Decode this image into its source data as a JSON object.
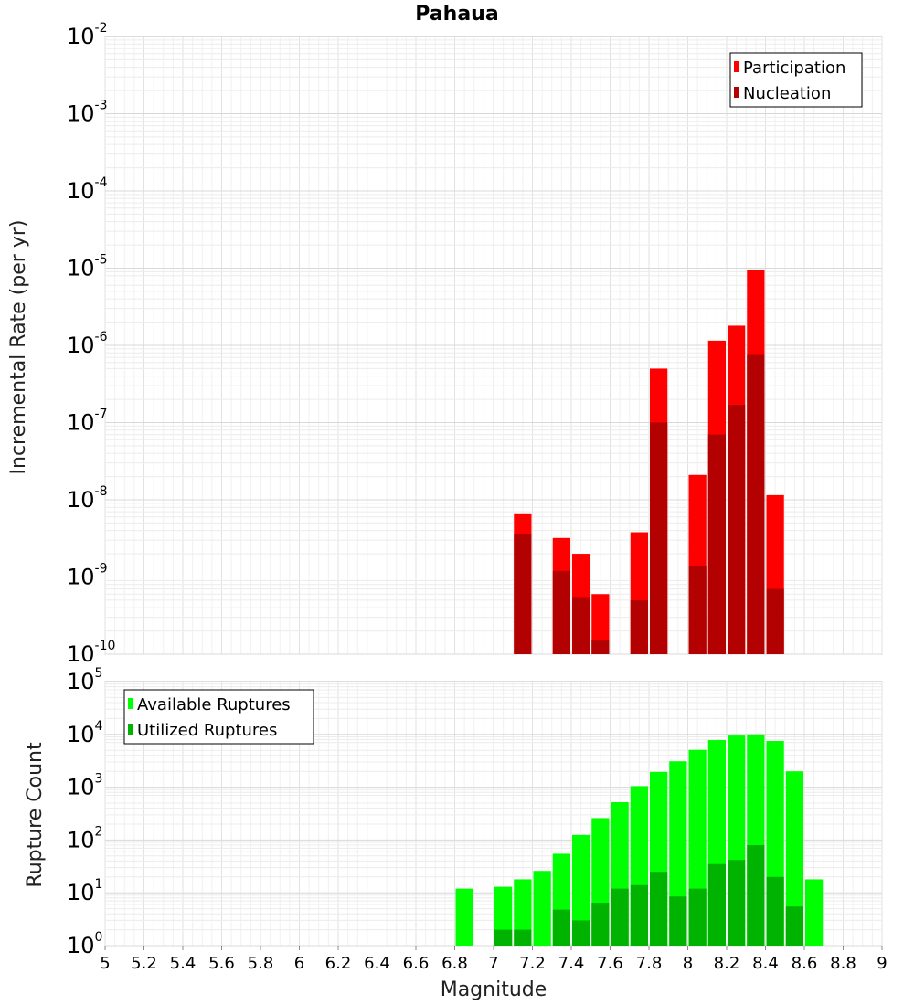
{
  "title": "Pahaua",
  "xlabel": "Magnitude",
  "x_ticks": [
    "5",
    "5.2",
    "5.4",
    "5.6",
    "5.8",
    "6",
    "6.2",
    "6.4",
    "6.6",
    "6.8",
    "7",
    "7.2",
    "7.4",
    "7.6",
    "7.8",
    "8",
    "8.2",
    "8.4",
    "8.6",
    "8.8",
    "9"
  ],
  "chart_data": [
    {
      "type": "bar",
      "id": "rate",
      "ylabel": "Incremental Rate (per yr)",
      "yscale": "log",
      "xlim": [
        5,
        9
      ],
      "ylim": [
        1e-10,
        0.01
      ],
      "y_ticks": [
        {
          "base": "10",
          "exp": "-2",
          "value": 0.01
        },
        {
          "base": "10",
          "exp": "-3",
          "value": 0.001
        },
        {
          "base": "10",
          "exp": "-4",
          "value": 0.0001
        },
        {
          "base": "10",
          "exp": "-5",
          "value": 1e-05
        },
        {
          "base": "10",
          "exp": "-6",
          "value": 1e-06
        },
        {
          "base": "10",
          "exp": "-7",
          "value": 1e-07
        },
        {
          "base": "10",
          "exp": "-8",
          "value": 1e-08
        },
        {
          "base": "10",
          "exp": "-9",
          "value": 1e-09
        },
        {
          "base": "10",
          "exp": "-10",
          "value": 1e-10
        }
      ],
      "legend_position": "top-right",
      "grid": true,
      "x": [
        7.05,
        7.15,
        7.25,
        7.35,
        7.45,
        7.55,
        7.65,
        7.75,
        7.85,
        7.95,
        8.05,
        8.15,
        8.25,
        8.35,
        8.45
      ],
      "series": [
        {
          "name": "Participation",
          "color": "#ff0000",
          "values": [
            null,
            6.5e-09,
            null,
            3.2e-09,
            2e-09,
            6e-10,
            null,
            3.8e-09,
            5e-07,
            null,
            2.1e-08,
            1.15e-06,
            1.8e-06,
            9.5e-06,
            1.15e-08
          ]
        },
        {
          "name": "Nucleation",
          "color": "#b30000",
          "values": [
            null,
            3.6e-09,
            null,
            1.2e-09,
            5.5e-10,
            1.5e-10,
            null,
            5e-10,
            1e-07,
            null,
            1.4e-09,
            7e-08,
            1.7e-07,
            7.5e-07,
            7e-10
          ]
        }
      ]
    },
    {
      "type": "bar",
      "id": "count",
      "ylabel": "Rupture Count",
      "yscale": "log",
      "xlim": [
        5,
        9
      ],
      "ylim": [
        1,
        100000
      ],
      "y_ticks": [
        {
          "base": "10",
          "exp": "5",
          "value": 100000
        },
        {
          "base": "10",
          "exp": "4",
          "value": 10000
        },
        {
          "base": "10",
          "exp": "3",
          "value": 1000
        },
        {
          "base": "10",
          "exp": "2",
          "value": 100
        },
        {
          "base": "10",
          "exp": "1",
          "value": 10
        },
        {
          "base": "10",
          "exp": "0",
          "value": 1
        }
      ],
      "legend_position": "top-left",
      "grid": true,
      "x": [
        6.85,
        6.95,
        7.05,
        7.15,
        7.25,
        7.35,
        7.45,
        7.55,
        7.65,
        7.75,
        7.85,
        7.95,
        8.05,
        8.15,
        8.25,
        8.35,
        8.45,
        8.55,
        8.65
      ],
      "series": [
        {
          "name": "Available Ruptures",
          "color": "#00ff00",
          "values": [
            12,
            null,
            13,
            18,
            26,
            55,
            125,
            260,
            520,
            1050,
            1950,
            3100,
            5100,
            7800,
            9500,
            10000,
            7500,
            2000,
            18
          ]
        },
        {
          "name": "Utilized Ruptures",
          "color": "#00b300",
          "values": [
            null,
            null,
            2,
            2,
            null,
            4.8,
            3,
            6.5,
            12,
            14,
            25,
            8.5,
            12,
            35,
            42,
            80,
            20,
            5.5,
            null
          ]
        }
      ]
    }
  ]
}
